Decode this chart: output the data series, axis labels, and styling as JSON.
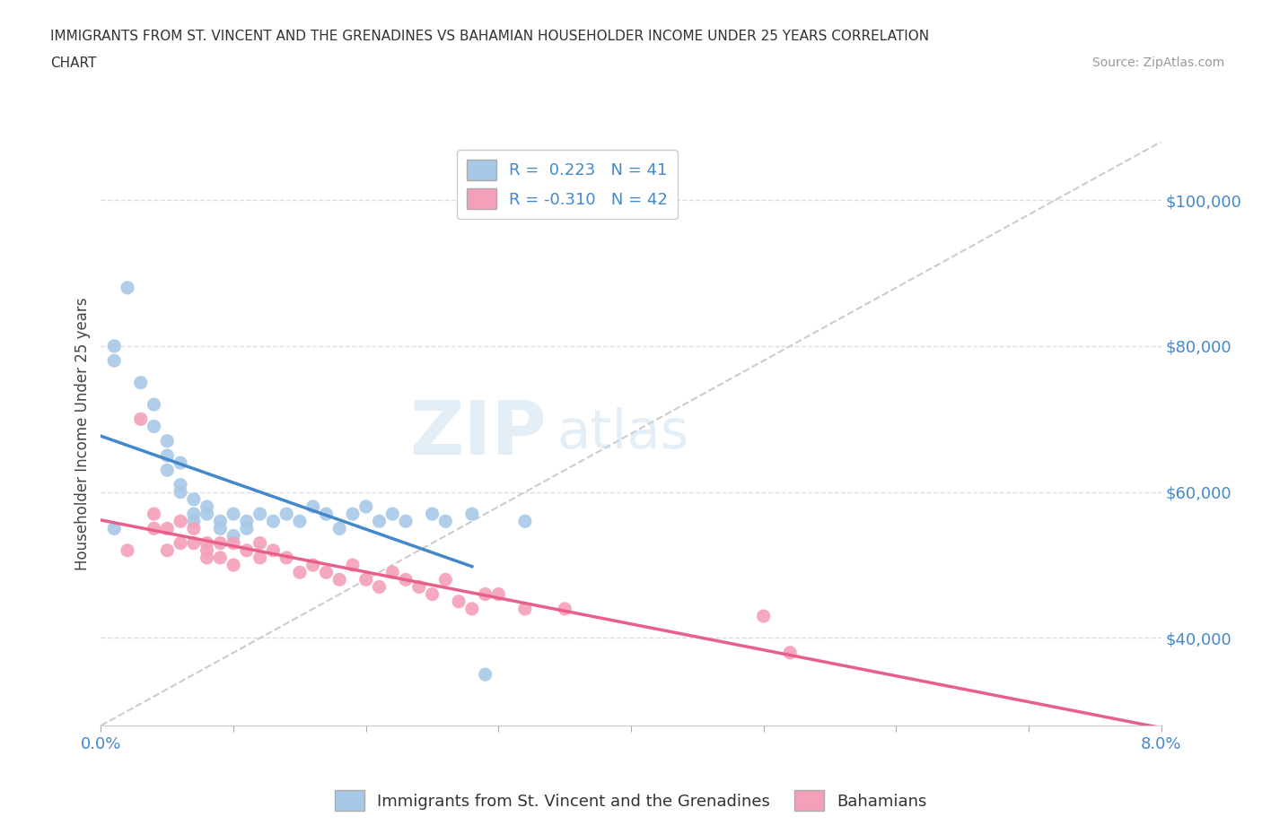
{
  "title_line1": "IMMIGRANTS FROM ST. VINCENT AND THE GRENADINES VS BAHAMIAN HOUSEHOLDER INCOME UNDER 25 YEARS CORRELATION",
  "title_line2": "CHART",
  "source_text": "Source: ZipAtlas.com",
  "ylabel": "Householder Income Under 25 years",
  "xlim": [
    0.0,
    0.08
  ],
  "ylim": [
    28000,
    108000
  ],
  "xticks": [
    0.0,
    0.01,
    0.02,
    0.03,
    0.04,
    0.05,
    0.06,
    0.07,
    0.08
  ],
  "xticklabels": [
    "0.0%",
    "",
    "",
    "",
    "",
    "",
    "",
    "",
    "8.0%"
  ],
  "yticks": [
    40000,
    60000,
    80000,
    100000
  ],
  "yticklabels": [
    "$40,000",
    "$60,000",
    "$80,000",
    "$100,000"
  ],
  "blue_R": "0.223",
  "blue_N": "41",
  "pink_R": "-0.310",
  "pink_N": "42",
  "blue_color": "#a8c8e8",
  "pink_color": "#f4a0b8",
  "blue_line_color": "#4488cc",
  "pink_line_color": "#e8608a",
  "trendline_color": "#cccccc",
  "legend_label_blue": "Immigrants from St. Vincent and the Grenadines",
  "legend_label_pink": "Bahamians",
  "blue_scatter_x": [
    0.001,
    0.001,
    0.002,
    0.003,
    0.004,
    0.004,
    0.005,
    0.005,
    0.005,
    0.006,
    0.006,
    0.006,
    0.007,
    0.007,
    0.007,
    0.008,
    0.008,
    0.009,
    0.009,
    0.01,
    0.01,
    0.011,
    0.011,
    0.012,
    0.013,
    0.014,
    0.015,
    0.016,
    0.017,
    0.018,
    0.019,
    0.02,
    0.021,
    0.022,
    0.023,
    0.025,
    0.026,
    0.028,
    0.029,
    0.032,
    0.001
  ],
  "blue_scatter_y": [
    78000,
    80000,
    88000,
    75000,
    69000,
    72000,
    63000,
    67000,
    65000,
    61000,
    64000,
    60000,
    59000,
    57000,
    56000,
    57000,
    58000,
    55000,
    56000,
    54000,
    57000,
    56000,
    55000,
    57000,
    56000,
    57000,
    56000,
    58000,
    57000,
    55000,
    57000,
    58000,
    56000,
    57000,
    56000,
    57000,
    56000,
    57000,
    35000,
    56000,
    55000
  ],
  "pink_scatter_x": [
    0.002,
    0.003,
    0.004,
    0.004,
    0.005,
    0.005,
    0.006,
    0.006,
    0.007,
    0.007,
    0.008,
    0.008,
    0.008,
    0.009,
    0.009,
    0.01,
    0.01,
    0.011,
    0.012,
    0.012,
    0.013,
    0.014,
    0.015,
    0.016,
    0.017,
    0.018,
    0.019,
    0.02,
    0.021,
    0.022,
    0.023,
    0.024,
    0.025,
    0.026,
    0.027,
    0.028,
    0.029,
    0.03,
    0.032,
    0.035,
    0.05,
    0.052
  ],
  "pink_scatter_y": [
    52000,
    70000,
    55000,
    57000,
    52000,
    55000,
    53000,
    56000,
    53000,
    55000,
    51000,
    53000,
    52000,
    51000,
    53000,
    50000,
    53000,
    52000,
    51000,
    53000,
    52000,
    51000,
    49000,
    50000,
    49000,
    48000,
    50000,
    48000,
    47000,
    49000,
    48000,
    47000,
    46000,
    48000,
    45000,
    44000,
    46000,
    46000,
    44000,
    44000,
    43000,
    38000
  ]
}
